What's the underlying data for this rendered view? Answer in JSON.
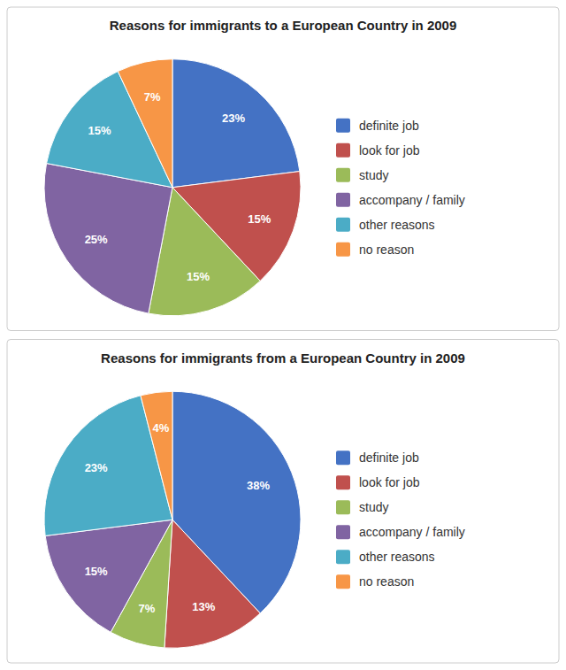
{
  "chart_data": [
    {
      "type": "pie",
      "title": "Reasons for immigrants to a European Country in 2009",
      "categories": [
        "definite job",
        "look for job",
        "study",
        "accompany / family",
        "other reasons",
        "no reason"
      ],
      "values": [
        23,
        15,
        15,
        25,
        15,
        7
      ],
      "value_labels": [
        "23%",
        "15%",
        "15%",
        "25%",
        "15%",
        "7%"
      ],
      "colors": [
        "#4472C4",
        "#C0504D",
        "#9BBB59",
        "#8064A2",
        "#4BACC6",
        "#F79646"
      ],
      "data_labels": true,
      "legend": "right"
    },
    {
      "type": "pie",
      "title": "Reasons for immigrants from a European Country in 2009",
      "categories": [
        "definite job",
        "look for job",
        "study",
        "accompany / family",
        "other reasons",
        "no reason"
      ],
      "values": [
        38,
        13,
        7,
        15,
        23,
        4
      ],
      "value_labels": [
        "38%",
        "13%",
        "7%",
        "15%",
        "23%",
        "4%"
      ],
      "colors": [
        "#4472C4",
        "#C0504D",
        "#9BBB59",
        "#8064A2",
        "#4BACC6",
        "#F79646"
      ],
      "data_labels": true,
      "legend": "right"
    }
  ]
}
